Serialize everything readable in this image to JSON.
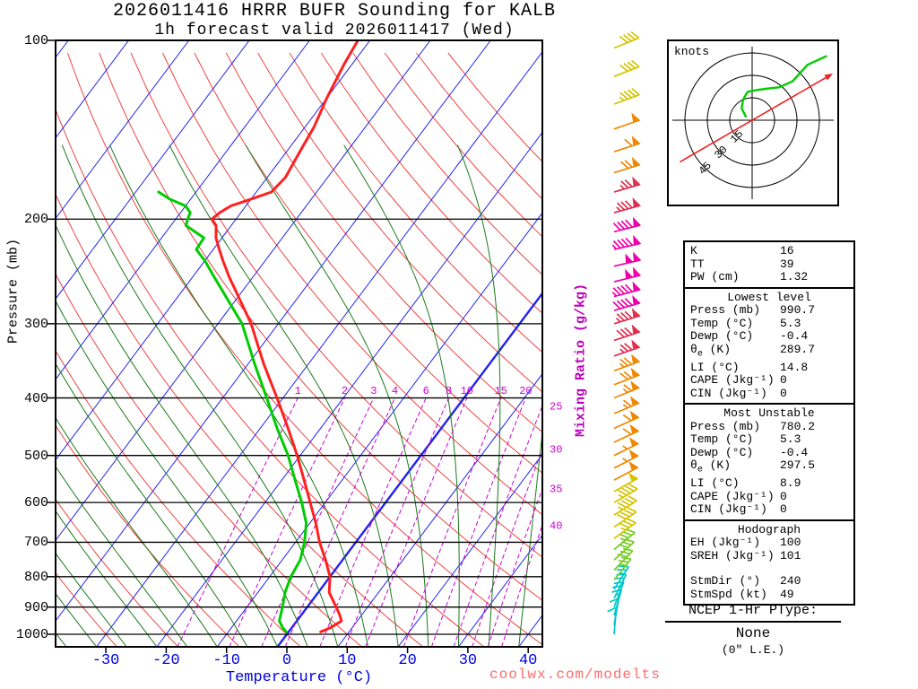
{
  "title": {
    "line1": "2026011416 HRRR BUFR Sounding for KALB",
    "line2": "1h forecast valid 2026011417 (Wed)"
  },
  "watermark": "coolwx.com/modelts",
  "axes": {
    "pressure_label": "Pressure (mb)",
    "temperature_label": "Temperature (°C)",
    "mixing_ratio_label": "Mixing Ratio (g/kg)"
  },
  "chart_data": {
    "type": "line",
    "subtype": "skew-T log-p sounding",
    "title": "2026011416 HRRR BUFR Sounding for KALB, 1h forecast valid 2026011417 (Wed)",
    "xlabel": "Temperature (°C)",
    "ylabel": "Pressure (mb)",
    "pressure_range_mb": [
      100,
      1050
    ],
    "pressure_ticks_mb": [
      100,
      200,
      300,
      400,
      500,
      600,
      700,
      800,
      900,
      1000
    ],
    "temperature_ticks_c": [
      -30,
      -20,
      -10,
      0,
      10,
      20,
      30,
      40
    ],
    "background": {
      "isotherms_c": {
        "min": -110,
        "max": 40,
        "step": 10,
        "highlight": 0
      },
      "dry_adiabats_c": {
        "min": -40,
        "max": 160,
        "step": 10
      },
      "moist_adiabats_c": {
        "min": -40,
        "max": 40,
        "step": 5
      },
      "mixing_ratio_lines_gkg": [
        1,
        2,
        3,
        4,
        6,
        8,
        10,
        15,
        20,
        25,
        30,
        35,
        40
      ],
      "mixing_ratio_top_labels": [
        1,
        2,
        3,
        4,
        6,
        8,
        10,
        15,
        20
      ],
      "mixing_ratio_right_labels": [
        25,
        30,
        35,
        40
      ]
    },
    "levels_p_t_td": [
      [
        990.7,
        5.3,
        -0.4
      ],
      [
        975,
        6.4,
        -1.5
      ],
      [
        950,
        7.4,
        -2.9
      ],
      [
        925,
        6.2,
        -3.5
      ],
      [
        900,
        4.8,
        -4.1
      ],
      [
        850,
        1.8,
        -5.5
      ],
      [
        800,
        0.0,
        -6.5
      ],
      [
        750,
        -2.8,
        -7.0
      ],
      [
        700,
        -6.0,
        -8.5
      ],
      [
        650,
        -9.0,
        -10.6
      ],
      [
        600,
        -12.5,
        -13.9
      ],
      [
        550,
        -16.3,
        -17.8
      ],
      [
        500,
        -20.5,
        -22.0
      ],
      [
        450,
        -25.4,
        -27.2
      ],
      [
        400,
        -31.0,
        -32.7
      ],
      [
        350,
        -37.5,
        -39.0
      ],
      [
        300,
        -44.5,
        -46.0
      ],
      [
        250,
        -54.0,
        -56.5
      ],
      [
        235,
        -57.0,
        -60.0
      ],
      [
        225,
        -59.0,
        -62.8
      ],
      [
        215,
        -61.0,
        -63.0
      ],
      [
        205,
        -62.5,
        -67.5
      ],
      [
        200,
        -64.0,
        -68.0
      ],
      [
        195,
        -63.5,
        -68.4
      ],
      [
        190,
        -62.5,
        -70.0
      ],
      [
        185,
        -60.0,
        -73.5
      ],
      [
        180,
        -57.5,
        -76.2
      ],
      [
        170,
        -57.0,
        null
      ],
      [
        160,
        -57.5,
        null
      ],
      [
        150,
        -58.0,
        null
      ],
      [
        140,
        -58.5,
        null
      ],
      [
        125,
        -60.0,
        null
      ],
      [
        110,
        -61.3,
        null
      ],
      [
        100,
        -62.0,
        null
      ]
    ],
    "wind_barbs_p_dir_spd": [
      [
        1000,
        185,
        8
      ],
      [
        965,
        190,
        12
      ],
      [
        930,
        196,
        15
      ],
      [
        900,
        201,
        18
      ],
      [
        870,
        207,
        20
      ],
      [
        840,
        213,
        23
      ],
      [
        810,
        219,
        26
      ],
      [
        780,
        224,
        29
      ],
      [
        750,
        228,
        32
      ],
      [
        720,
        231,
        34
      ],
      [
        690,
        234,
        37
      ],
      [
        660,
        236,
        40
      ],
      [
        630,
        238,
        43
      ],
      [
        600,
        240,
        46
      ],
      [
        575,
        241,
        48
      ],
      [
        550,
        242,
        51
      ],
      [
        525,
        243,
        53
      ],
      [
        500,
        244,
        56
      ],
      [
        475,
        245,
        58
      ],
      [
        450,
        246,
        61
      ],
      [
        425,
        247,
        64
      ],
      [
        400,
        248,
        67
      ],
      [
        380,
        249,
        70
      ],
      [
        360,
        250,
        73
      ],
      [
        340,
        251,
        77
      ],
      [
        320,
        252,
        81
      ],
      [
        300,
        253,
        86
      ],
      [
        285,
        254,
        90
      ],
      [
        270,
        255,
        94
      ],
      [
        255,
        256,
        98
      ],
      [
        240,
        257,
        100
      ],
      [
        225,
        257,
        97
      ],
      [
        210,
        256,
        92
      ],
      [
        195,
        255,
        85
      ],
      [
        180,
        254,
        76
      ],
      [
        167,
        253,
        68
      ],
      [
        154,
        252,
        60
      ],
      [
        141,
        251,
        52
      ],
      [
        128,
        250,
        46
      ],
      [
        115,
        249,
        42
      ],
      [
        103,
        248,
        40
      ]
    ],
    "wind_speed_colors": [
      [
        24,
        "#00C8C8"
      ],
      [
        34,
        "#77CC22"
      ],
      [
        49,
        "#D4C400"
      ],
      [
        74,
        "#EE8800"
      ],
      [
        89,
        "#E03050"
      ],
      [
        999,
        "#EE00AA"
      ]
    ],
    "colors": {
      "temperature_curve": "#ff2020",
      "dewpoint_curve": "#00cc00",
      "isotherm": "#2222ee",
      "dry_adiabat": "#ee4444",
      "moist_adiabat": "#1a7a1a",
      "mixing_ratio": "#cc00cc",
      "pressure_line": "#000000",
      "temp_axis_text": "#0000dd"
    }
  },
  "hodograph": {
    "unit_label": "knots",
    "ring_labels_kt": [
      15,
      30,
      45
    ],
    "trace_uv_kt": [
      [
        -4,
        2
      ],
      [
        -7,
        8
      ],
      [
        -6,
        14
      ],
      [
        -3,
        19
      ],
      [
        2,
        20
      ],
      [
        9,
        21
      ],
      [
        18,
        22
      ],
      [
        27,
        26
      ],
      [
        37,
        37
      ],
      [
        50,
        43
      ]
    ],
    "storm_motion": {
      "dir_deg": 240,
      "spd_kt": 49
    },
    "trace_color": "#00cc00",
    "storm_color": "#ee2222"
  },
  "table": {
    "sections": [
      {
        "header": null,
        "rows": [
          [
            "K",
            "16"
          ],
          [
            "TT",
            "39"
          ],
          [
            "PW (cm)",
            "1.32"
          ]
        ]
      },
      {
        "header": "Lowest level",
        "rows": [
          [
            "Press (mb)",
            "990.7"
          ],
          [
            "Temp (°C)",
            "5.3"
          ],
          [
            "Dewp (°C)",
            "-0.4"
          ],
          [
            "θe (K)",
            "289.7"
          ],
          [
            "LI (°C)",
            "14.8"
          ],
          [
            "CAPE (Jkg⁻¹)",
            "0"
          ],
          [
            "CIN (Jkg⁻¹)",
            "0"
          ]
        ]
      },
      {
        "header": "Most Unstable",
        "rows": [
          [
            "Press (mb)",
            "780.2"
          ],
          [
            "Temp (°C)",
            "5.3"
          ],
          [
            "Dewp (°C)",
            "-0.4"
          ],
          [
            "θe (K)",
            "297.5"
          ],
          [
            "LI (°C)",
            "8.9"
          ],
          [
            "CAPE (Jkg⁻¹)",
            "0"
          ],
          [
            "CIN (Jkg⁻¹)",
            "0"
          ]
        ]
      },
      {
        "header": "Hodograph",
        "rows": [
          [
            "EH (Jkg⁻¹)",
            "100"
          ],
          [
            "SREH (Jkg⁻¹)",
            "101"
          ],
          [
            "StmDir (°)",
            "240",
            "gap"
          ],
          [
            "StmSpd (kt)",
            "49"
          ]
        ]
      }
    ]
  },
  "ptype": {
    "title": "NCEP 1-Hr PType:",
    "value": "None",
    "detail": "(0\" L.E.)"
  }
}
